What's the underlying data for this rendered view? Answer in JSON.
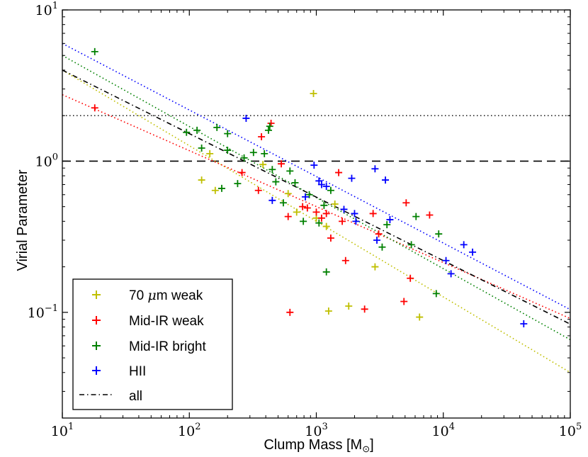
{
  "chart_data": {
    "type": "scatter",
    "xscale": "log",
    "yscale": "log",
    "xlim": [
      10,
      100000
    ],
    "ylim": [
      0.02,
      10
    ],
    "xlabel_main": "Clump Mass [M",
    "xlabel_sub": "⊙",
    "xlabel_end": "]",
    "ylabel": "Virial Parameter",
    "x_ticks": [
      {
        "value": 10,
        "base": "10",
        "exp": "1"
      },
      {
        "value": 100,
        "base": "10",
        "exp": "2"
      },
      {
        "value": 1000,
        "base": "10",
        "exp": "3"
      },
      {
        "value": 10000,
        "base": "10",
        "exp": "4"
      },
      {
        "value": 100000,
        "base": "10",
        "exp": "5"
      }
    ],
    "y_ticks": [
      {
        "value": 0.1,
        "label": "10",
        "exp": "−1"
      },
      {
        "value": 1,
        "label": "10",
        "exp": "0",
        "plain": "10"
      },
      {
        "value": 10,
        "label": "10",
        "exp": "1"
      }
    ],
    "hlines": [
      {
        "y": 2,
        "style": "dotted",
        "color": "#000000"
      },
      {
        "y": 1,
        "style": "dashed",
        "color": "#000000"
      }
    ],
    "series": [
      {
        "name": "70 µm weak",
        "label_prefix": "70 ",
        "label_mu": "μ",
        "label_suffix": "m weak",
        "color": "#bfbf00",
        "fit": {
          "a": 4.0,
          "b": -0.5
        },
        "points": [
          [
            125,
            0.75
          ],
          [
            145,
            1.12
          ],
          [
            160,
            0.64
          ],
          [
            380,
            0.95
          ],
          [
            600,
            0.61
          ],
          [
            700,
            0.46
          ],
          [
            950,
            2.8
          ],
          [
            1000,
            0.42
          ],
          [
            1200,
            0.37
          ],
          [
            1250,
            0.102
          ],
          [
            1400,
            0.52
          ],
          [
            1800,
            0.11
          ],
          [
            2900,
            0.2
          ],
          [
            6500,
            0.093
          ]
        ]
      },
      {
        "name": "Mid-IR weak",
        "label": "Mid-IR weak",
        "color": "#ff0000",
        "fit": {
          "a": 2.75,
          "b": -0.37
        },
        "points": [
          [
            18,
            2.25
          ],
          [
            260,
            0.84
          ],
          [
            350,
            0.64
          ],
          [
            370,
            1.45
          ],
          [
            440,
            1.78
          ],
          [
            530,
            0.96
          ],
          [
            600,
            0.43
          ],
          [
            620,
            0.1
          ],
          [
            780,
            0.5
          ],
          [
            850,
            0.49
          ],
          [
            1000,
            0.46
          ],
          [
            1100,
            0.42
          ],
          [
            1200,
            0.45
          ],
          [
            1300,
            0.31
          ],
          [
            1500,
            0.84
          ],
          [
            1600,
            0.4
          ],
          [
            1700,
            0.22
          ],
          [
            2400,
            0.105
          ],
          [
            2800,
            0.45
          ],
          [
            3100,
            0.33
          ],
          [
            4900,
            0.118
          ],
          [
            5100,
            0.53
          ],
          [
            5500,
            0.168
          ],
          [
            7800,
            0.44
          ]
        ]
      },
      {
        "name": "Mid-IR bright",
        "label": "Mid-IR bright",
        "color": "#008000",
        "fit": {
          "a": 5.0,
          "b": -0.47
        },
        "points": [
          [
            18,
            5.3
          ],
          [
            95,
            1.55
          ],
          [
            115,
            1.6
          ],
          [
            125,
            1.22
          ],
          [
            165,
            1.67
          ],
          [
            180,
            0.66
          ],
          [
            200,
            1.52
          ],
          [
            200,
            1.18
          ],
          [
            240,
            0.71
          ],
          [
            270,
            1.05
          ],
          [
            320,
            1.14
          ],
          [
            390,
            1.12
          ],
          [
            420,
            1.6
          ],
          [
            430,
            1.7
          ],
          [
            450,
            0.88
          ],
          [
            480,
            0.73
          ],
          [
            550,
            0.53
          ],
          [
            620,
            0.86
          ],
          [
            680,
            0.72
          ],
          [
            790,
            0.4
          ],
          [
            880,
            0.6
          ],
          [
            1050,
            0.39
          ],
          [
            1150,
            0.51
          ],
          [
            1200,
            0.185
          ],
          [
            1300,
            0.64
          ],
          [
            3300,
            0.27
          ],
          [
            3600,
            0.38
          ],
          [
            5600,
            0.28
          ],
          [
            6100,
            0.43
          ],
          [
            8800,
            0.133
          ],
          [
            9200,
            0.33
          ]
        ]
      },
      {
        "name": "HII",
        "label": "HII",
        "color": "#0000ff",
        "fit": {
          "a": 6.0,
          "b": -0.44
        },
        "points": [
          [
            280,
            1.92
          ],
          [
            450,
            0.55
          ],
          [
            820,
            0.58
          ],
          [
            960,
            0.94
          ],
          [
            1050,
            0.74
          ],
          [
            1100,
            0.7
          ],
          [
            1200,
            0.68
          ],
          [
            1650,
            0.48
          ],
          [
            1900,
            0.77
          ],
          [
            2000,
            0.45
          ],
          [
            2050,
            0.4
          ],
          [
            2900,
            0.89
          ],
          [
            3000,
            0.3
          ],
          [
            3500,
            0.75
          ],
          [
            3800,
            0.41
          ],
          [
            10500,
            0.22
          ],
          [
            11500,
            0.18
          ],
          [
            14500,
            0.28
          ],
          [
            17000,
            0.25
          ],
          [
            43000,
            0.084
          ]
        ]
      }
    ],
    "all_fit": {
      "name": "all",
      "label": "all",
      "color": "#000000",
      "a": 4.0,
      "b": -0.42,
      "x_range": [
        10,
        100000
      ]
    },
    "legend_position": "lower-left"
  }
}
